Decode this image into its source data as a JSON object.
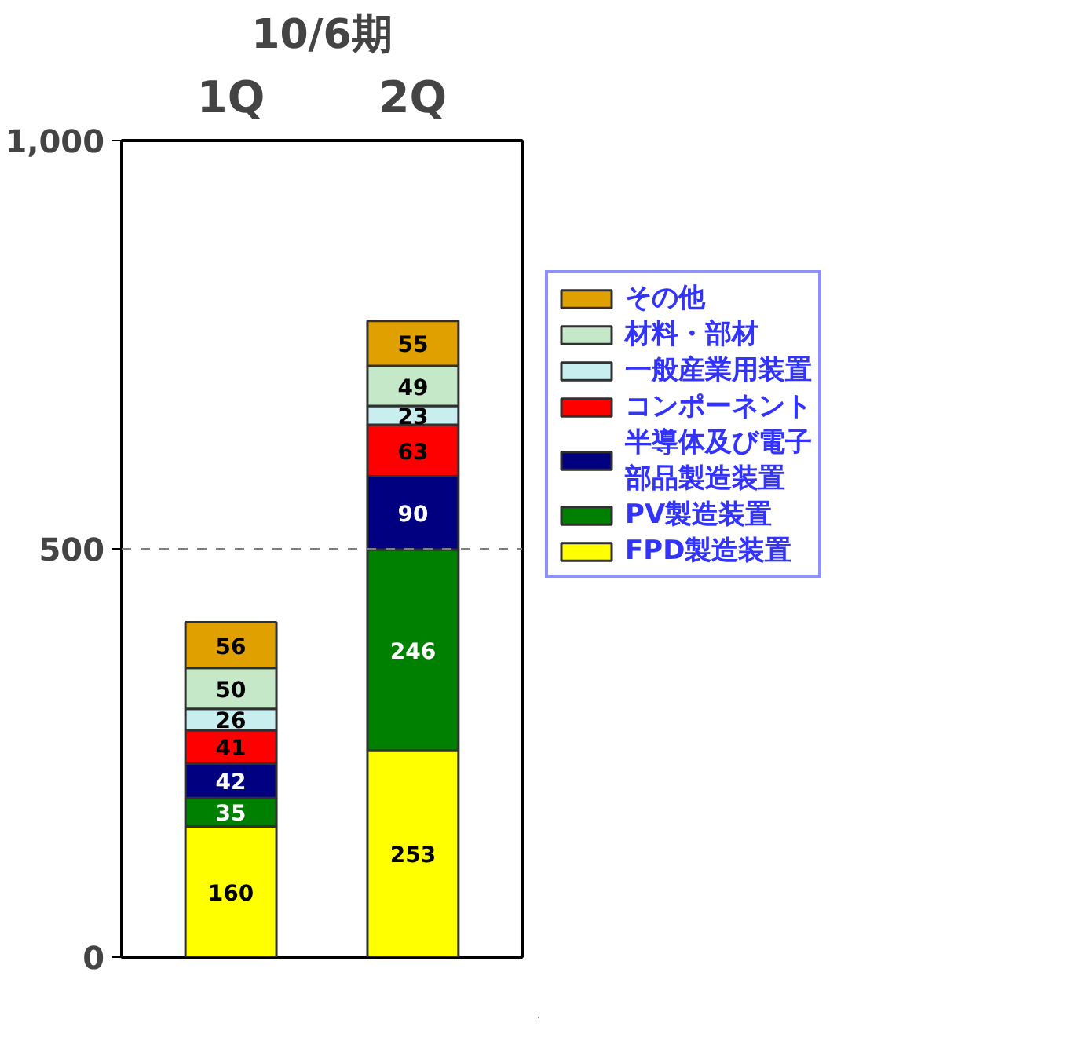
{
  "chart_data": {
    "type": "bar",
    "title": "10/6期",
    "categories": [
      "1Q",
      "2Q"
    ],
    "stacked": true,
    "series": [
      {
        "name": "FPD製造装置",
        "color": "#ffff00",
        "values": [
          160,
          253
        ]
      },
      {
        "name": "PV製造装置",
        "color": "#008000",
        "values": [
          35,
          246
        ]
      },
      {
        "name": "半導体及び電子部品製造装置",
        "color": "#000080",
        "values": [
          42,
          90
        ]
      },
      {
        "name": "コンポーネント",
        "color": "#ff0000",
        "values": [
          41,
          63
        ]
      },
      {
        "name": "一般産業用装置",
        "color": "#c8eef0",
        "values": [
          26,
          23
        ]
      },
      {
        "name": "材料・部材",
        "color": "#c4e8c8",
        "values": [
          50,
          49
        ]
      },
      {
        "name": "その他",
        "color": "#e0a000",
        "values": [
          56,
          55
        ]
      }
    ],
    "ylim": [
      0,
      1000
    ],
    "yticks": [
      0,
      {
        "value": 500,
        "label": "500"
      },
      {
        "value": 1000,
        "label": "1,000"
      }
    ],
    "ref_lines": [
      {
        "axis": "y",
        "value": 500,
        "color": "#808080",
        "line_style": "dashed"
      }
    ],
    "grid": false,
    "legend": "right",
    "data_labels": true
  }
}
